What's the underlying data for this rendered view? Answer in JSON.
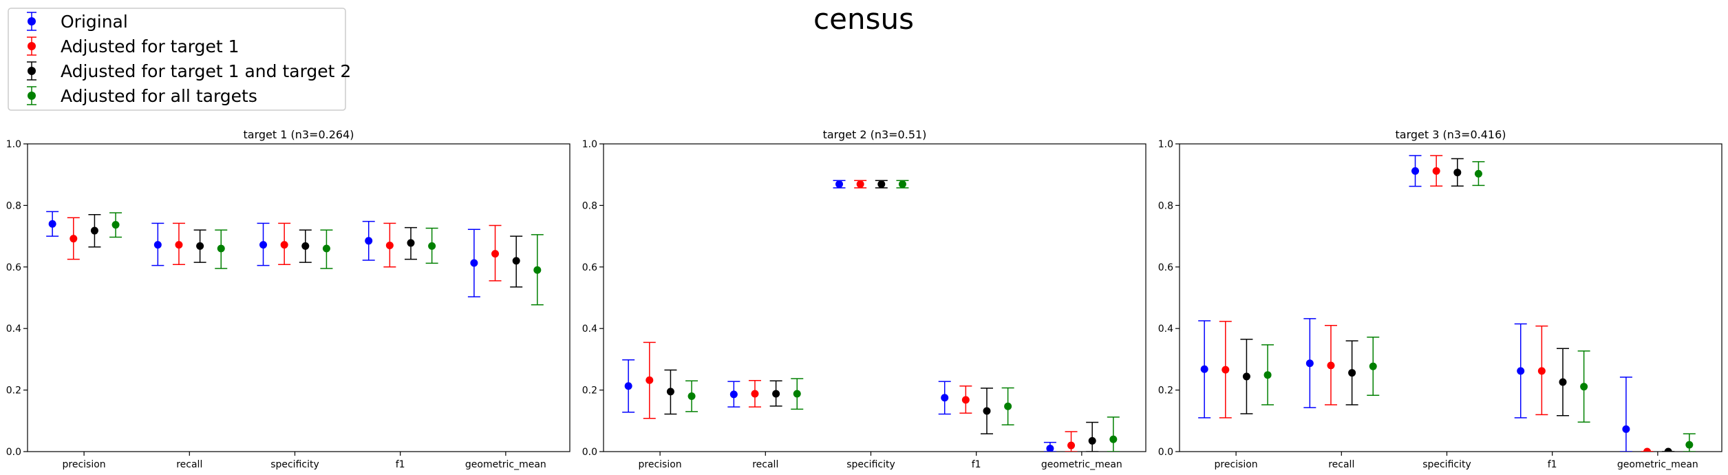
{
  "figure": {
    "suptitle": "census",
    "legend": {
      "placement": "top-left",
      "entries": [
        {
          "label": "Original",
          "color": "#0000ff"
        },
        {
          "label": "Adjusted for target 1",
          "color": "#ff0000"
        },
        {
          "label": "Adjusted for target 1 and target 2",
          "color": "#000000"
        },
        {
          "label": "Adjusted for all targets",
          "color": "#008000"
        }
      ]
    }
  },
  "chart_data": [
    {
      "type": "scatter",
      "title": "target 1 (n3=0.264)",
      "categories": [
        "precision",
        "recall",
        "specificity",
        "f1",
        "geometric_mean"
      ],
      "ylim": [
        0,
        1.0
      ],
      "yticks": [
        "0.0",
        "0.2",
        "0.4",
        "0.6",
        "0.8",
        "1.0"
      ],
      "grid": false,
      "series": [
        {
          "name": "Original",
          "color": "#0000ff",
          "values": [
            0.74,
            0.672,
            0.672,
            0.685,
            0.613
          ],
          "lower": [
            0.7,
            0.605,
            0.605,
            0.622,
            0.503
          ],
          "upper": [
            0.78,
            0.742,
            0.742,
            0.748,
            0.722
          ]
        },
        {
          "name": "Adjusted for target 1",
          "color": "#ff0000",
          "values": [
            0.692,
            0.672,
            0.672,
            0.67,
            0.643
          ],
          "lower": [
            0.625,
            0.608,
            0.608,
            0.6,
            0.555
          ],
          "upper": [
            0.76,
            0.742,
            0.742,
            0.742,
            0.735
          ]
        },
        {
          "name": "Adjusted for target 1 and target 2",
          "color": "#000000",
          "values": [
            0.718,
            0.668,
            0.668,
            0.678,
            0.62
          ],
          "lower": [
            0.665,
            0.615,
            0.615,
            0.625,
            0.535
          ],
          "upper": [
            0.77,
            0.72,
            0.72,
            0.728,
            0.7
          ]
        },
        {
          "name": "Adjusted for all targets",
          "color": "#008000",
          "values": [
            0.737,
            0.66,
            0.66,
            0.668,
            0.59
          ],
          "lower": [
            0.697,
            0.595,
            0.595,
            0.612,
            0.477
          ],
          "upper": [
            0.776,
            0.72,
            0.72,
            0.726,
            0.705
          ]
        }
      ]
    },
    {
      "type": "scatter",
      "title": "target 2 (n3=0.51)",
      "categories": [
        "precision",
        "recall",
        "specificity",
        "f1",
        "geometric_mean"
      ],
      "ylim": [
        0,
        1.0
      ],
      "yticks": [
        "0.0",
        "0.2",
        "0.4",
        "0.6",
        "0.8",
        "1.0"
      ],
      "grid": false,
      "series": [
        {
          "name": "Original",
          "color": "#0000ff",
          "values": [
            0.213,
            0.186,
            0.869,
            0.175,
            0.01
          ],
          "lower": [
            0.128,
            0.145,
            0.857,
            0.122,
            0.0
          ],
          "upper": [
            0.298,
            0.228,
            0.881,
            0.228,
            0.03
          ]
        },
        {
          "name": "Adjusted for target 1",
          "color": "#ff0000",
          "values": [
            0.232,
            0.188,
            0.869,
            0.168,
            0.02
          ],
          "lower": [
            0.108,
            0.145,
            0.857,
            0.125,
            0.0
          ],
          "upper": [
            0.355,
            0.231,
            0.881,
            0.213,
            0.065
          ]
        },
        {
          "name": "Adjusted for target 1 and target 2",
          "color": "#000000",
          "values": [
            0.195,
            0.188,
            0.869,
            0.132,
            0.035
          ],
          "lower": [
            0.122,
            0.148,
            0.857,
            0.058,
            0.0
          ],
          "upper": [
            0.265,
            0.23,
            0.881,
            0.206,
            0.095
          ]
        },
        {
          "name": "Adjusted for all targets",
          "color": "#008000",
          "values": [
            0.18,
            0.188,
            0.869,
            0.147,
            0.04
          ],
          "lower": [
            0.13,
            0.138,
            0.857,
            0.087,
            0.0
          ],
          "upper": [
            0.23,
            0.237,
            0.881,
            0.207,
            0.112
          ]
        }
      ]
    },
    {
      "type": "scatter",
      "title": "target 3 (n3=0.416)",
      "categories": [
        "precision",
        "recall",
        "specificity",
        "f1",
        "geometric_mean"
      ],
      "ylim": [
        0,
        1.0
      ],
      "yticks": [
        "0.0",
        "0.2",
        "0.4",
        "0.6",
        "0.8",
        "1.0"
      ],
      "grid": false,
      "series": [
        {
          "name": "Original",
          "color": "#0000ff",
          "values": [
            0.268,
            0.287,
            0.912,
            0.262,
            0.073
          ],
          "lower": [
            0.11,
            0.143,
            0.862,
            0.11,
            0.0
          ],
          "upper": [
            0.425,
            0.432,
            0.962,
            0.415,
            0.242
          ]
        },
        {
          "name": "Adjusted for target 1",
          "color": "#ff0000",
          "values": [
            0.266,
            0.28,
            0.912,
            0.262,
            0.0
          ],
          "lower": [
            0.11,
            0.152,
            0.863,
            0.12,
            0.0
          ],
          "upper": [
            0.423,
            0.41,
            0.962,
            0.408,
            0.0
          ]
        },
        {
          "name": "Adjusted for target 1 and target 2",
          "color": "#000000",
          "values": [
            0.244,
            0.256,
            0.907,
            0.226,
            0.0
          ],
          "lower": [
            0.123,
            0.152,
            0.863,
            0.117,
            0.0
          ],
          "upper": [
            0.365,
            0.36,
            0.952,
            0.335,
            0.0
          ]
        },
        {
          "name": "Adjusted for all targets",
          "color": "#008000",
          "values": [
            0.249,
            0.277,
            0.903,
            0.211,
            0.022
          ],
          "lower": [
            0.152,
            0.183,
            0.865,
            0.096,
            0.0
          ],
          "upper": [
            0.347,
            0.372,
            0.942,
            0.327,
            0.058
          ]
        }
      ]
    }
  ]
}
